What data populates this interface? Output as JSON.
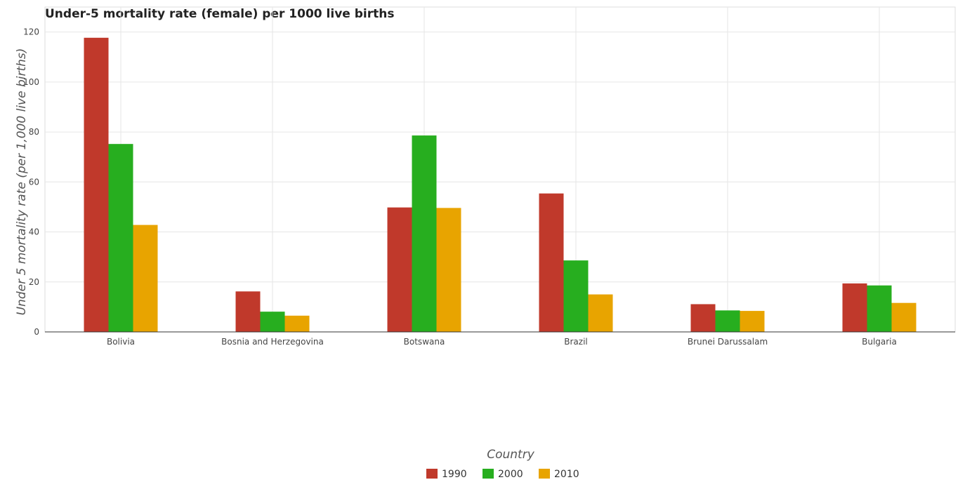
{
  "chart_data": {
    "type": "bar",
    "title": "Under-5 mortality rate (female) per 1000 live births",
    "xlabel": "Country",
    "ylabel": "Under 5 mortality rate (per 1,000 live births)",
    "categories": [
      "Bolivia",
      "Bosnia and Herzegovina",
      "Botswana",
      "Brazil",
      "Brunei Darussalam",
      "Bulgaria"
    ],
    "series": [
      {
        "name": "1990",
        "color": "#c0392b",
        "values": [
          117.7,
          16.2,
          49.8,
          55.4,
          11.1,
          19.4
        ]
      },
      {
        "name": "2000",
        "color": "#27ae1f",
        "values": [
          75.2,
          8.1,
          78.6,
          28.6,
          8.6,
          18.6
        ]
      },
      {
        "name": "2010",
        "color": "#e8a400",
        "values": [
          42.8,
          6.5,
          49.6,
          15.0,
          8.4,
          11.6
        ]
      }
    ],
    "ylim": [
      0,
      130
    ],
    "yticks": [
      0,
      20,
      40,
      60,
      80,
      100,
      120
    ],
    "grid": true,
    "legend_position": "bottom-center"
  }
}
